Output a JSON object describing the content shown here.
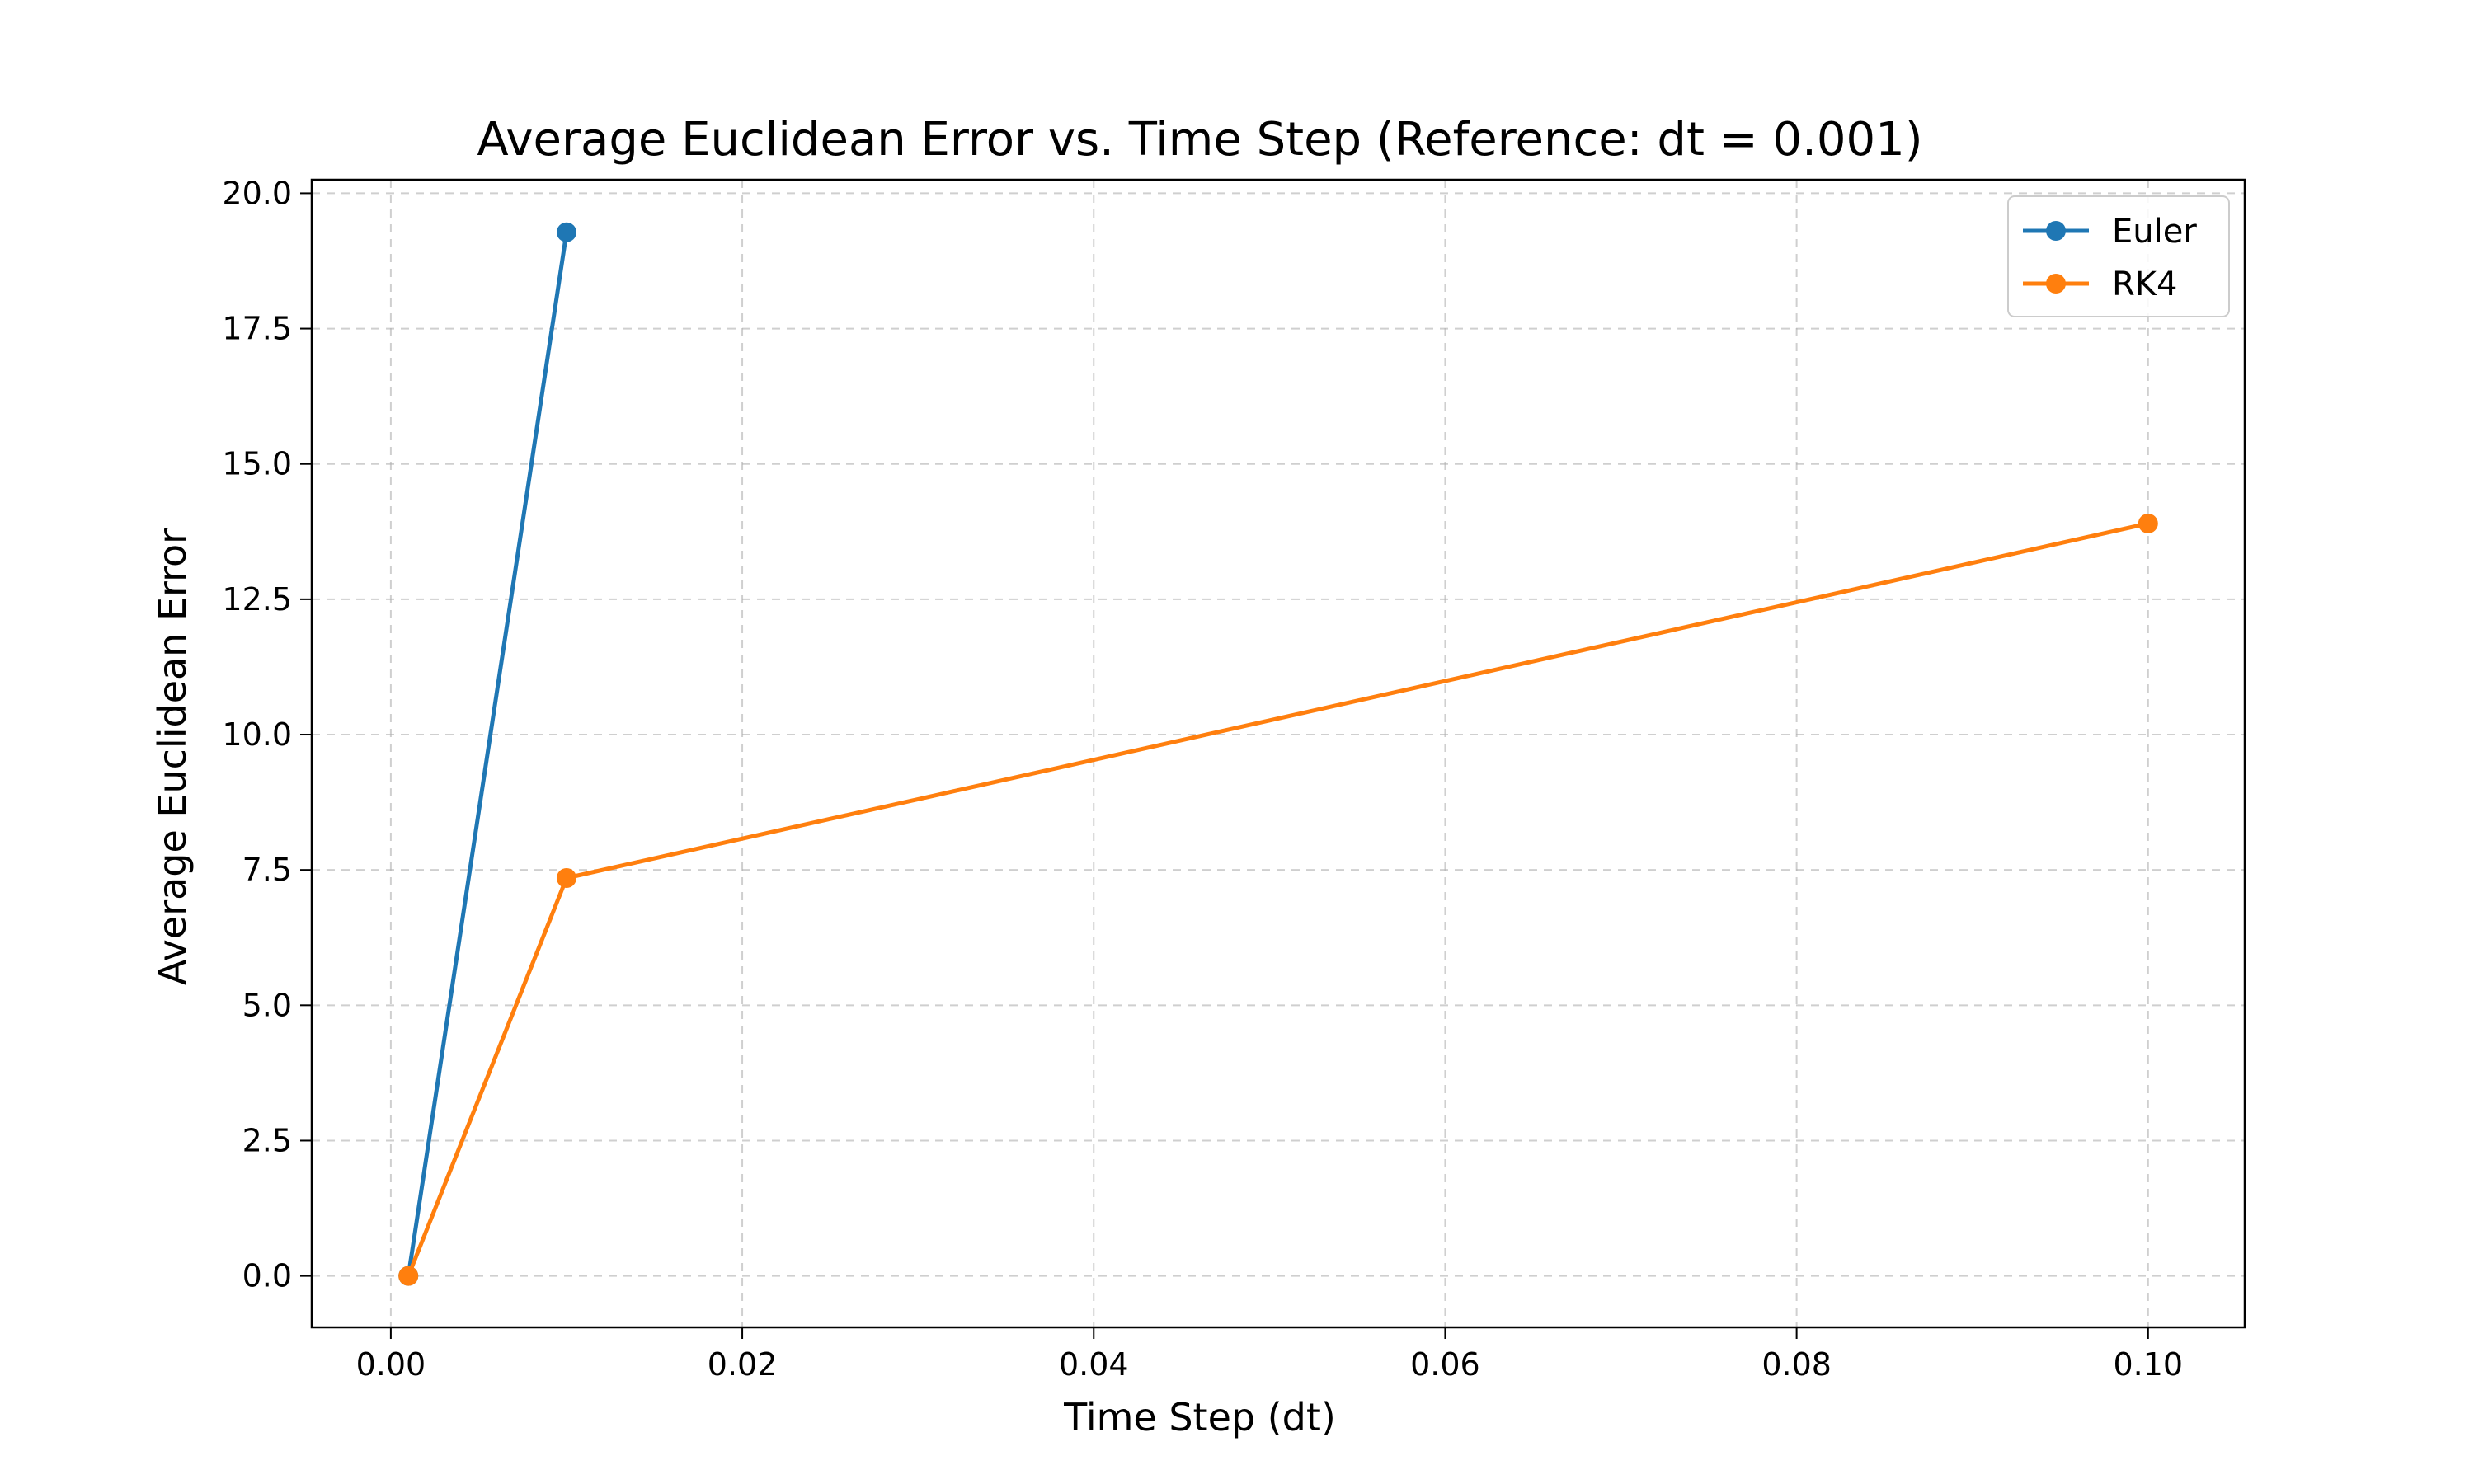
{
  "chart_data": {
    "type": "line",
    "title": "Average Euclidean Error vs. Time Step (Reference: dt = 0.001)",
    "xlabel": "Time Step (dt)",
    "ylabel": "Average Euclidean Error",
    "xlim": [
      -0.0045,
      0.1055
    ],
    "ylim": [
      -0.95,
      20.25
    ],
    "xticks": [
      0.0,
      0.02,
      0.04,
      0.06,
      0.08,
      0.1
    ],
    "xtick_labels": [
      "0.00",
      "0.02",
      "0.04",
      "0.06",
      "0.08",
      "0.10"
    ],
    "yticks": [
      0.0,
      2.5,
      5.0,
      7.5,
      10.0,
      12.5,
      15.0,
      17.5,
      20.0
    ],
    "ytick_labels": [
      "0.0",
      "2.5",
      "5.0",
      "7.5",
      "10.0",
      "12.5",
      "15.0",
      "17.5",
      "20.0"
    ],
    "grid": true,
    "legend_position": "top-right",
    "series": [
      {
        "name": "Euler",
        "color": "#1f77b4",
        "marker": "circle",
        "x": [
          0.001,
          0.01
        ],
        "y": [
          0.0,
          19.28
        ]
      },
      {
        "name": "RK4",
        "color": "#ff7f0e",
        "marker": "circle",
        "x": [
          0.001,
          0.01,
          0.1
        ],
        "y": [
          0.0,
          7.35,
          13.9
        ]
      }
    ]
  }
}
